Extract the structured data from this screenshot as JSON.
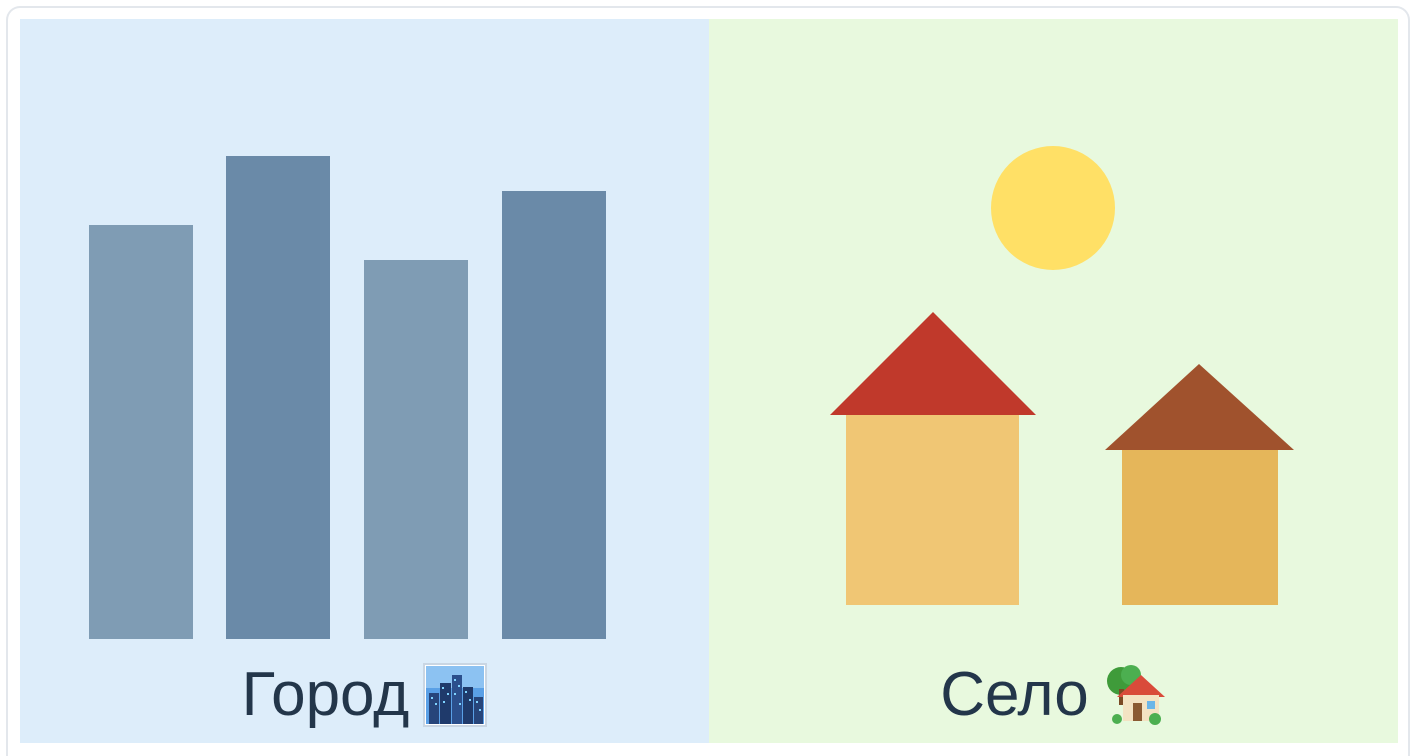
{
  "panels": {
    "city": {
      "label": "Город",
      "icon": "cityscape-icon",
      "building_colors": [
        "#7f9cb4",
        "#6a8aa8",
        "#7f9cb4",
        "#6a8aa8"
      ]
    },
    "village": {
      "label": "Село",
      "icon": "house-with-garden-icon",
      "sun_color": "#ffe066",
      "roof_colors": [
        "#c0392b",
        "#a0522d"
      ],
      "wall_colors": [
        "#f0c674",
        "#e5b65a"
      ]
    }
  },
  "colors": {
    "city_background": "#ddedfa",
    "village_background": "#e8f9de",
    "caption_text": "#23364a"
  }
}
